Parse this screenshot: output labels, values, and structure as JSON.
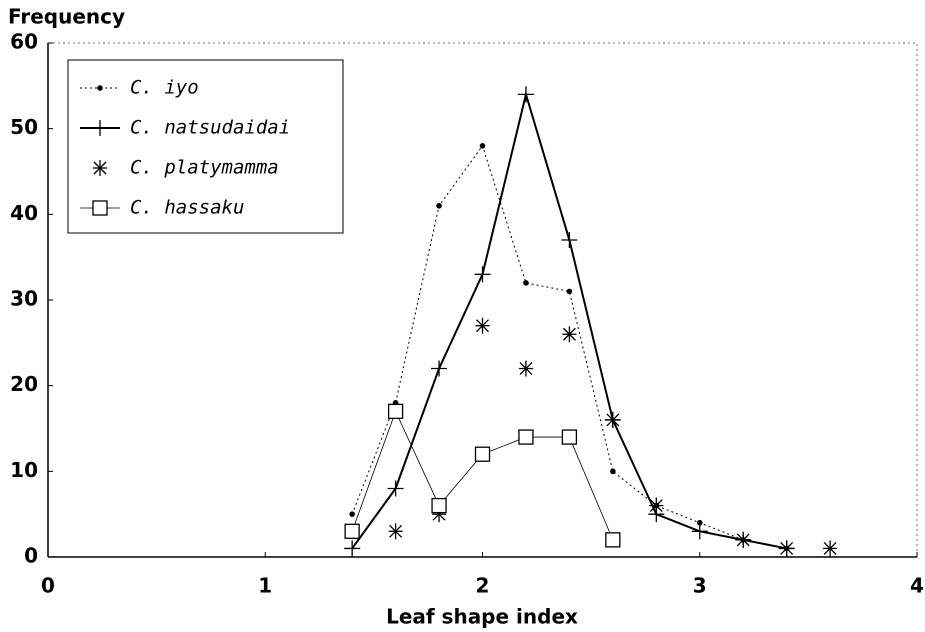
{
  "chart_data": {
    "type": "line",
    "ylabel": "Frequency",
    "xlabel": "Leaf shape index",
    "xlim": [
      0,
      4
    ],
    "xticks": [
      0,
      1,
      2,
      3,
      4
    ],
    "ylim": [
      0,
      60
    ],
    "yticks": [
      0,
      10,
      20,
      30,
      40,
      50,
      60
    ],
    "legend": "upper left",
    "series": [
      {
        "name": "C. iyo",
        "color": "#000000",
        "line": "dotted",
        "marker": "dot",
        "x": [
          1.4,
          1.6,
          1.8,
          2.0,
          2.2,
          2.4,
          2.6,
          2.8,
          3.0,
          3.2,
          3.4
        ],
        "values": [
          5,
          18,
          41,
          48,
          32,
          31,
          10,
          6,
          4,
          2,
          1
        ]
      },
      {
        "name": "C. natsudaidai",
        "color": "#000000",
        "line": "solid",
        "marker": "plus",
        "x": [
          1.4,
          1.6,
          1.8,
          2.0,
          2.2,
          2.4,
          2.6,
          2.8,
          3.0,
          3.2,
          3.4
        ],
        "values": [
          1,
          8,
          22,
          33,
          54,
          37,
          16,
          5,
          3,
          2,
          1
        ]
      },
      {
        "name": "C. platymamma",
        "color": "#000000",
        "line": "none",
        "marker": "star",
        "x": [
          1.6,
          1.8,
          2.0,
          2.2,
          2.4,
          2.6,
          2.8,
          3.2,
          3.4,
          3.6
        ],
        "values": [
          3,
          5,
          27,
          22,
          26,
          16,
          6,
          2,
          1,
          1
        ]
      },
      {
        "name": "C. hassaku",
        "color": "#000000",
        "line": "thin",
        "marker": "square",
        "x": [
          1.4,
          1.6,
          1.8,
          2.0,
          2.2,
          2.4,
          2.6
        ],
        "values": [
          3,
          17,
          6,
          12,
          14,
          14,
          2
        ]
      }
    ]
  }
}
